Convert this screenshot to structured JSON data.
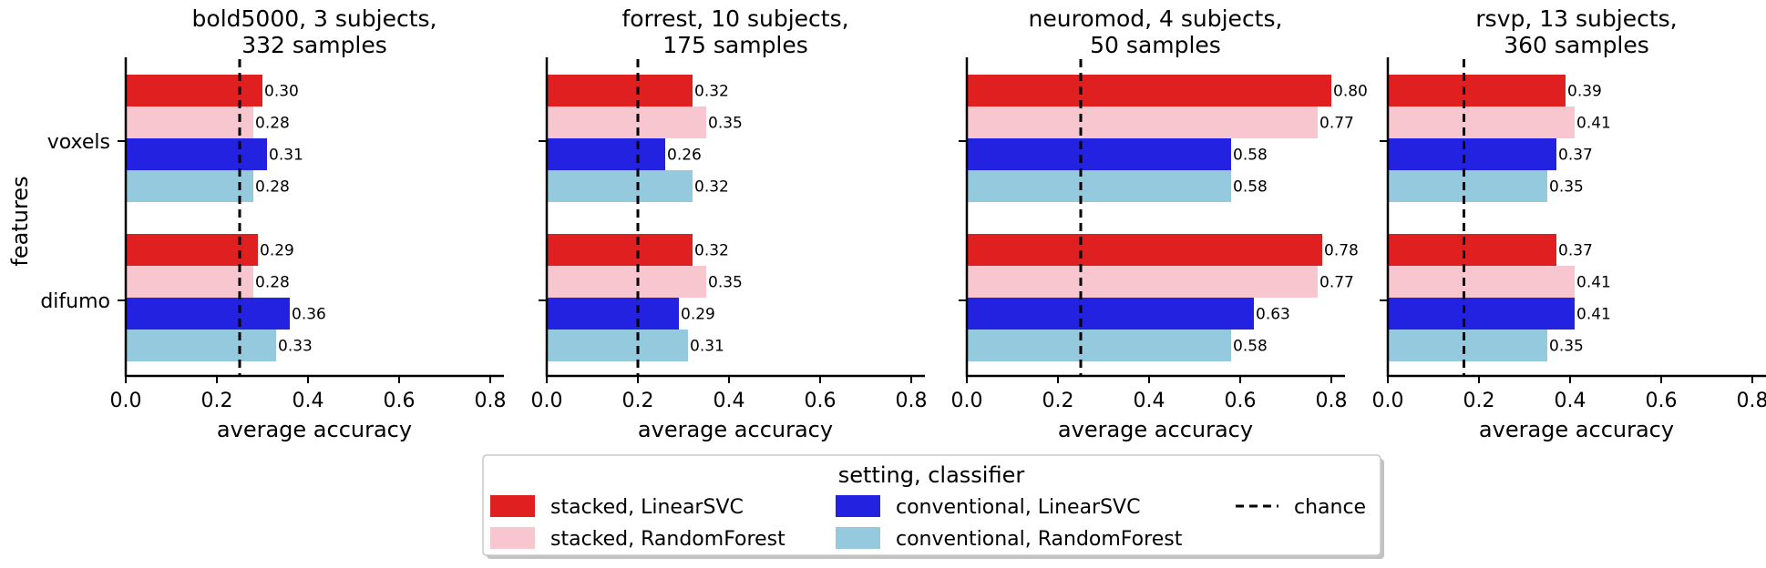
{
  "chart_data": {
    "type": "bar",
    "orientation": "horizontal",
    "ylabel": "features",
    "xlabel": "average accuracy",
    "xlim": [
      0,
      0.83
    ],
    "xticks": [
      "0.0",
      "0.2",
      "0.4",
      "0.6",
      "0.8"
    ],
    "categories": [
      "voxels",
      "difumo"
    ],
    "series_names": [
      "stacked, LinearSVC",
      "stacked, RandomForest",
      "conventional, LinearSVC",
      "conventional, RandomForest"
    ],
    "colors": [
      "#e02020",
      "#f7c6cf",
      "#2222e0",
      "#95c9de"
    ],
    "panels": [
      {
        "title_line1": "bold5000, 3 subjects,",
        "title_line2": "332 samples",
        "chance": 0.25,
        "values": [
          [
            0.3,
            0.28,
            0.31,
            0.28
          ],
          [
            0.29,
            0.28,
            0.36,
            0.33
          ]
        ],
        "labels": [
          [
            "0.30",
            "0.28",
            "0.31",
            "0.28"
          ],
          [
            "0.29",
            "0.28",
            "0.36",
            "0.33"
          ]
        ]
      },
      {
        "title_line1": "forrest, 10 subjects,",
        "title_line2": "175 samples",
        "chance": 0.2,
        "values": [
          [
            0.32,
            0.35,
            0.26,
            0.32
          ],
          [
            0.32,
            0.35,
            0.29,
            0.31
          ]
        ],
        "labels": [
          [
            "0.32",
            "0.35",
            "0.26",
            "0.32"
          ],
          [
            "0.32",
            "0.35",
            "0.29",
            "0.31"
          ]
        ]
      },
      {
        "title_line1": "neuromod, 4 subjects,",
        "title_line2": "50 samples",
        "chance": 0.25,
        "values": [
          [
            0.8,
            0.77,
            0.58,
            0.58
          ],
          [
            0.78,
            0.77,
            0.63,
            0.58
          ]
        ],
        "labels": [
          [
            "0.80",
            "0.77",
            "0.58",
            "0.58"
          ],
          [
            "0.78",
            "0.77",
            "0.63",
            "0.58"
          ]
        ]
      },
      {
        "title_line1": "rsvp, 13 subjects,",
        "title_line2": "360 samples",
        "chance": 0.167,
        "values": [
          [
            0.39,
            0.41,
            0.37,
            0.35
          ],
          [
            0.37,
            0.41,
            0.41,
            0.35
          ]
        ],
        "labels": [
          [
            "0.39",
            "0.41",
            "0.37",
            "0.35"
          ],
          [
            "0.37",
            "0.41",
            "0.41",
            "0.35"
          ]
        ]
      }
    ],
    "legend": {
      "title": "setting, classifier",
      "position": "bottom-center",
      "entries": [
        "stacked, LinearSVC",
        "stacked, RandomForest",
        "conventional, LinearSVC",
        "conventional, RandomForest",
        "chance"
      ]
    }
  }
}
